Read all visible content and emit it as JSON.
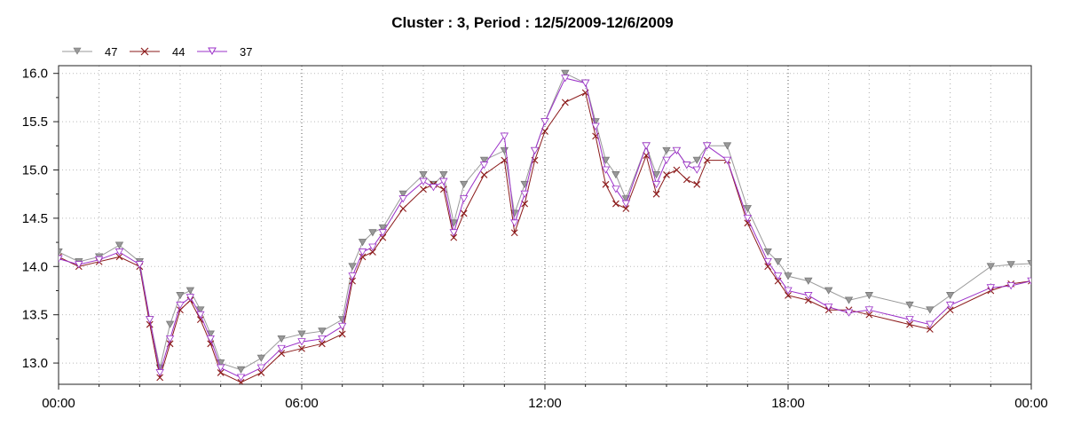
{
  "chart_data": {
    "type": "line",
    "title": "Cluster : 3, Period : 12/5/2009-12/6/2009",
    "xlabel": "",
    "ylabel": "",
    "x_range": [
      "12/5/2009 00:00",
      "12/6/2009 00:00"
    ],
    "x_tick_labels": [
      "00:00",
      "06:00",
      "12:00",
      "18:00",
      "00:00"
    ],
    "ylim": [
      12.78,
      16.08
    ],
    "y_ticks": [
      13.0,
      13.5,
      14.0,
      14.5,
      15.0,
      15.5,
      16.0
    ],
    "y_tick_labels": [
      "13.0",
      "13.5",
      "14.0",
      "14.5",
      "15.0",
      "15.5",
      "16.0"
    ],
    "grid": true,
    "legend_position": "top-left",
    "x": [
      "00:00",
      "00:30",
      "01:00",
      "01:30",
      "02:00",
      "02:15",
      "02:30",
      "02:45",
      "03:00",
      "03:15",
      "03:30",
      "03:45",
      "04:00",
      "04:30",
      "05:00",
      "05:30",
      "06:00",
      "06:30",
      "07:00",
      "07:15",
      "07:30",
      "07:45",
      "08:00",
      "08:30",
      "09:00",
      "09:15",
      "09:30",
      "09:45",
      "10:00",
      "10:30",
      "11:00",
      "11:15",
      "11:30",
      "11:45",
      "12:00",
      "12:30",
      "13:00",
      "13:15",
      "13:30",
      "13:45",
      "14:00",
      "14:30",
      "14:45",
      "15:00",
      "15:15",
      "15:30",
      "15:45",
      "16:00",
      "16:30",
      "17:00",
      "17:30",
      "17:45",
      "18:00",
      "18:30",
      "19:00",
      "19:30",
      "20:00",
      "21:00",
      "21:30",
      "22:00",
      "23:00",
      "23:30",
      "00:00"
    ],
    "series": [
      {
        "name": "47",
        "color": "#999999",
        "marker": "triangle-down",
        "values": [
          14.15,
          14.05,
          14.1,
          14.22,
          14.05,
          13.45,
          12.95,
          13.4,
          13.7,
          13.75,
          13.55,
          13.3,
          13.0,
          12.93,
          13.05,
          13.25,
          13.3,
          13.33,
          13.45,
          14.0,
          14.25,
          14.35,
          14.4,
          14.75,
          14.95,
          14.85,
          14.95,
          14.45,
          14.85,
          15.1,
          15.2,
          14.55,
          14.85,
          15.2,
          15.5,
          16.0,
          15.9,
          15.5,
          15.1,
          14.95,
          14.7,
          15.25,
          14.95,
          15.2,
          15.2,
          15.05,
          15.1,
          15.25,
          15.25,
          14.6,
          14.15,
          14.05,
          13.9,
          13.85,
          13.75,
          13.65,
          13.7,
          13.6,
          13.55,
          13.7,
          14.0,
          14.02,
          14.03
        ]
      },
      {
        "name": "44",
        "color": "#8b1a1a",
        "marker": "x",
        "values": [
          14.1,
          14.0,
          14.05,
          14.1,
          14.0,
          13.4,
          12.85,
          13.2,
          13.55,
          13.65,
          13.45,
          13.2,
          12.9,
          12.8,
          12.9,
          13.1,
          13.15,
          13.2,
          13.3,
          13.85,
          14.1,
          14.15,
          14.3,
          14.6,
          14.8,
          14.85,
          14.8,
          14.3,
          14.55,
          14.95,
          15.1,
          14.35,
          14.65,
          15.1,
          15.4,
          15.7,
          15.8,
          15.35,
          14.85,
          14.65,
          14.6,
          15.15,
          14.75,
          14.95,
          15.0,
          14.9,
          14.85,
          15.1,
          15.1,
          14.45,
          14.0,
          13.85,
          13.7,
          13.65,
          13.55,
          13.55,
          13.5,
          13.4,
          13.35,
          13.55,
          13.75,
          13.82,
          13.85
        ]
      },
      {
        "name": "37",
        "color": "#9b30c8",
        "marker": "triangle-down",
        "values": [
          14.08,
          14.02,
          14.07,
          14.15,
          14.02,
          13.45,
          12.9,
          13.25,
          13.6,
          13.68,
          13.5,
          13.25,
          12.95,
          12.85,
          12.95,
          13.15,
          13.22,
          13.25,
          13.38,
          13.9,
          14.15,
          14.2,
          14.35,
          14.7,
          14.88,
          14.82,
          14.88,
          14.35,
          14.7,
          15.05,
          15.35,
          14.45,
          14.75,
          15.2,
          15.5,
          15.95,
          15.9,
          15.45,
          15.0,
          14.8,
          14.65,
          15.25,
          14.85,
          15.1,
          15.2,
          15.05,
          15.0,
          15.25,
          15.1,
          14.5,
          14.05,
          13.9,
          13.75,
          13.7,
          13.58,
          13.52,
          13.55,
          13.45,
          13.4,
          13.6,
          13.78,
          13.8,
          13.85
        ]
      }
    ]
  }
}
